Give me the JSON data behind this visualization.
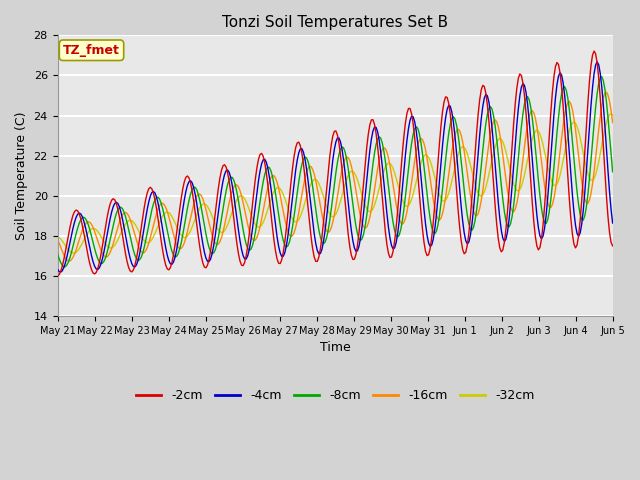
{
  "title": "Tonzi Soil Temperatures Set B",
  "xlabel": "Time",
  "ylabel": "Soil Temperature (C)",
  "ylim": [
    14,
    28
  ],
  "xlim": [
    0,
    15
  ],
  "annotation_text": "TZ_fmet",
  "annotation_color": "#cc0000",
  "annotation_bg": "#ffffcc",
  "annotation_edge": "#999900",
  "series_colors": [
    "#dd0000",
    "#0000cc",
    "#00aa00",
    "#ff8800",
    "#cccc00"
  ],
  "series_labels": [
    "-2cm",
    "-4cm",
    "-8cm",
    "-16cm",
    "-32cm"
  ],
  "x_tick_labels": [
    "May 21",
    "May 22",
    "May 23",
    "May 24",
    "May 25",
    "May 26",
    "May 27",
    "May 28",
    "May 29",
    "May 30",
    "May 31",
    "Jun 1",
    "Jun 2",
    "Jun 3",
    "Jun 4",
    "Jun 5"
  ],
  "yticks": [
    14,
    16,
    18,
    20,
    22,
    24,
    26,
    28
  ],
  "n_days": 15,
  "fig_facecolor": "#d3d3d3",
  "plot_facecolor": "#e8e8e8",
  "grid_color": "#ffffff",
  "title_fontsize": 11,
  "label_fontsize": 9,
  "tick_fontsize": 7,
  "legend_fontsize": 9
}
